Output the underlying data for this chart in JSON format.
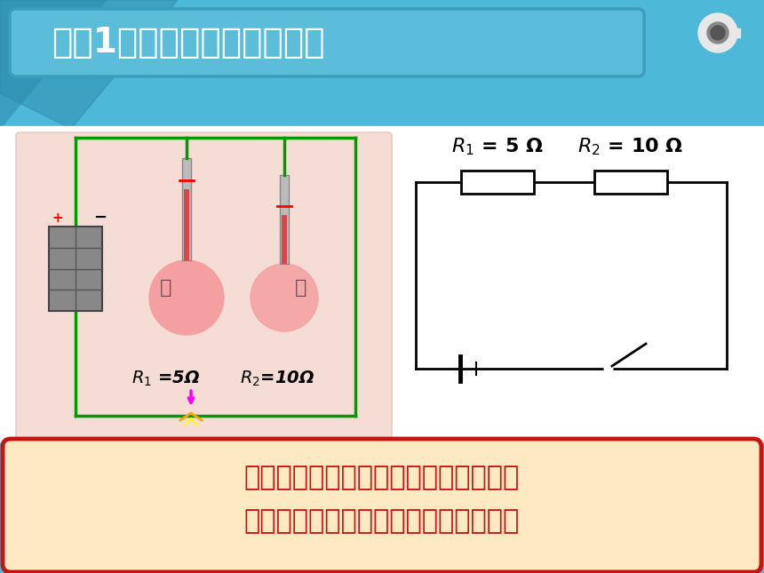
{
  "title": "实验1：研究电热与电阻关系",
  "bg_cyan": "#4db8d8",
  "bg_cyan_dark": "#2a9abf",
  "bg_white": "#ffffff",
  "title_text_color": "#ffffff",
  "title_box_fill": "#5bbdd9",
  "title_box_edge": "#3a9ec0",
  "bottom_text_line1": "在电流相同、通电时间相同的情况下，",
  "bottom_text_line2": "电阻越大，这个电阻产生的热量越多。",
  "bottom_bg_color": "#fde9c2",
  "bottom_border_color": "#cc1111",
  "bottom_text_color": "#cc1111",
  "exp_photo_bg": "#f5ddd5",
  "wire_color": "#009900",
  "circuit_lw": 2.0
}
